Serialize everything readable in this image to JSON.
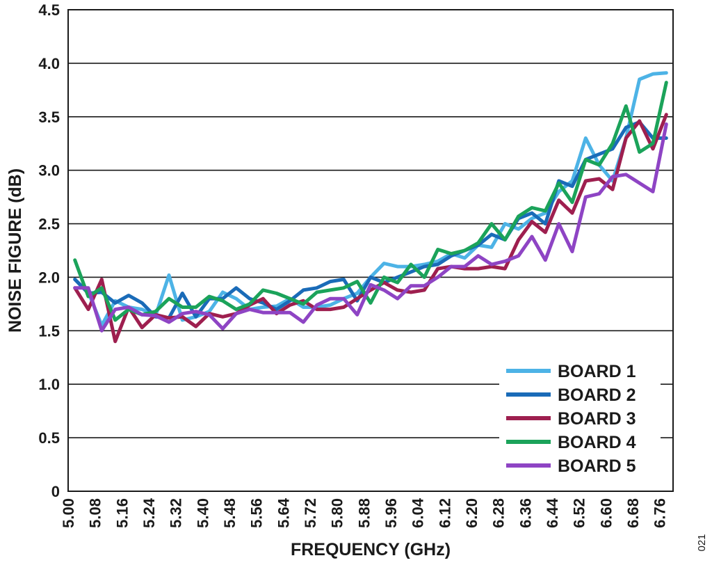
{
  "figure_id": "021",
  "chart_data": {
    "type": "line",
    "title": "",
    "xlabel": "FREQUENCY (GHz)",
    "ylabel": "NOISE FIGURE (dB)",
    "xlim": [
      5.0,
      6.8
    ],
    "ylim": [
      0,
      4.5
    ],
    "x_ticks": [
      "5.00",
      "5.08",
      "5.16",
      "5.24",
      "5.32",
      "5.40",
      "5.48",
      "5.56",
      "5.64",
      "5.72",
      "5.80",
      "5.88",
      "5.96",
      "6.04",
      "6.12",
      "6.20",
      "6.28",
      "6.36",
      "6.44",
      "6.52",
      "6.60",
      "6.68",
      "6.76"
    ],
    "y_ticks": [
      "0",
      "0.5",
      "1.0",
      "1.5",
      "2.0",
      "2.5",
      "3.0",
      "3.5",
      "4.0",
      "4.5"
    ],
    "grid": "horizontal",
    "legend_position": "bottom-right",
    "x": [
      5.02,
      5.06,
      5.1,
      5.14,
      5.18,
      5.22,
      5.26,
      5.3,
      5.34,
      5.38,
      5.42,
      5.46,
      5.5,
      5.54,
      5.58,
      5.62,
      5.66,
      5.7,
      5.74,
      5.78,
      5.82,
      5.86,
      5.9,
      5.94,
      5.98,
      6.02,
      6.06,
      6.1,
      6.14,
      6.18,
      6.22,
      6.26,
      6.3,
      6.34,
      6.38,
      6.42,
      6.46,
      6.5,
      6.54,
      6.58,
      6.62,
      6.66,
      6.7,
      6.74,
      6.78
    ],
    "series": [
      {
        "name": "BOARD 1",
        "color": "#4db3e6",
        "values": [
          1.98,
          1.86,
          1.55,
          1.78,
          1.72,
          1.7,
          1.64,
          2.02,
          1.6,
          1.63,
          1.68,
          1.86,
          1.8,
          1.7,
          1.72,
          1.73,
          1.8,
          1.72,
          1.72,
          1.74,
          1.8,
          1.85,
          2.0,
          2.13,
          2.1,
          2.1,
          2.12,
          2.15,
          2.22,
          2.18,
          2.3,
          2.28,
          2.5,
          2.45,
          2.55,
          2.6,
          2.8,
          2.9,
          3.3,
          3.05,
          2.9,
          3.3,
          3.85,
          3.9,
          3.91
        ]
      },
      {
        "name": "BOARD 2",
        "color": "#1a6bb8",
        "values": [
          1.98,
          1.85,
          1.86,
          1.76,
          1.83,
          1.76,
          1.63,
          1.62,
          1.85,
          1.63,
          1.8,
          1.8,
          1.9,
          1.8,
          1.76,
          1.7,
          1.78,
          1.88,
          1.9,
          1.96,
          1.98,
          1.78,
          2.0,
          1.95,
          2.0,
          2.05,
          2.1,
          2.12,
          2.2,
          2.25,
          2.3,
          2.4,
          2.35,
          2.55,
          2.6,
          2.5,
          2.9,
          2.85,
          3.1,
          3.15,
          3.2,
          3.4,
          3.45,
          3.3,
          3.3
        ]
      },
      {
        "name": "BOARD 3",
        "color": "#9e1f4f",
        "values": [
          1.9,
          1.7,
          1.98,
          1.4,
          1.72,
          1.53,
          1.65,
          1.62,
          1.63,
          1.54,
          1.66,
          1.63,
          1.66,
          1.74,
          1.8,
          1.66,
          1.74,
          1.78,
          1.7,
          1.7,
          1.72,
          1.8,
          1.88,
          1.95,
          1.88,
          1.86,
          1.88,
          2.08,
          2.1,
          2.08,
          2.08,
          2.1,
          2.08,
          2.35,
          2.52,
          2.42,
          2.72,
          2.6,
          2.9,
          2.92,
          2.82,
          3.3,
          3.46,
          3.2,
          3.52
        ]
      },
      {
        "name": "BOARD 4",
        "color": "#1ba35a",
        "values": [
          2.16,
          1.82,
          1.9,
          1.6,
          1.7,
          1.65,
          1.68,
          1.8,
          1.72,
          1.72,
          1.82,
          1.78,
          1.7,
          1.75,
          1.88,
          1.85,
          1.8,
          1.75,
          1.86,
          1.88,
          1.9,
          1.96,
          1.76,
          2.0,
          1.95,
          2.12,
          2.0,
          2.26,
          2.22,
          2.25,
          2.32,
          2.5,
          2.35,
          2.57,
          2.65,
          2.62,
          2.88,
          2.7,
          3.1,
          3.05,
          3.25,
          3.6,
          3.17,
          3.25,
          3.82
        ]
      },
      {
        "name": "BOARD 5",
        "color": "#8e44c4",
        "values": [
          1.9,
          1.9,
          1.5,
          1.7,
          1.72,
          1.65,
          1.64,
          1.58,
          1.66,
          1.68,
          1.65,
          1.52,
          1.66,
          1.7,
          1.67,
          1.67,
          1.67,
          1.58,
          1.74,
          1.8,
          1.8,
          1.65,
          1.93,
          1.88,
          1.8,
          1.92,
          1.92,
          2.0,
          2.1,
          2.1,
          2.2,
          2.12,
          2.15,
          2.2,
          2.38,
          2.16,
          2.5,
          2.24,
          2.75,
          2.78,
          2.94,
          2.96,
          2.88,
          2.8,
          3.43
        ]
      }
    ]
  }
}
